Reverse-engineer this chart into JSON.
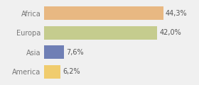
{
  "categories": [
    "Africa",
    "Europa",
    "Asia",
    "America"
  ],
  "values": [
    44.3,
    42.0,
    7.6,
    6.2
  ],
  "labels": [
    "44,3%",
    "42,0%",
    "7,6%",
    "6,2%"
  ],
  "bar_colors": [
    "#e8b882",
    "#c5cc8e",
    "#6f7fb5",
    "#f0cc6e"
  ],
  "background_color": "#f0f0f0",
  "xlim": [
    0,
    56
  ],
  "label_fontsize": 7.0,
  "tick_fontsize": 7.0,
  "bar_height": 0.68
}
